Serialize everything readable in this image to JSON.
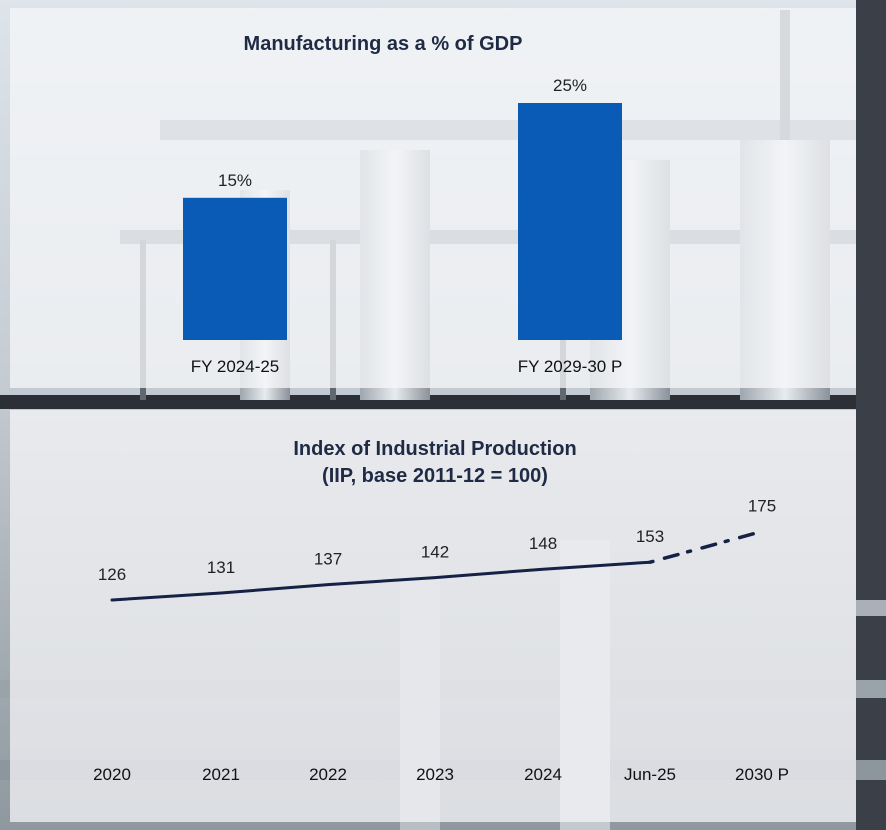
{
  "chart_data": [
    {
      "type": "bar",
      "title": "Manufacturing as a % of GDP",
      "categories": [
        "FY 2024-25",
        "FY 2029-30 P"
      ],
      "values": [
        15,
        25
      ],
      "value_labels": [
        "15%",
        "25%"
      ],
      "ylim": [
        0,
        25
      ],
      "bar_color": "#0a5bb5",
      "grid": false,
      "legend": "none"
    },
    {
      "type": "line",
      "title": [
        "Index of Industrial Production",
        "(IIP, base 2011-12 = 100)"
      ],
      "categories": [
        "2020",
        "2021",
        "2022",
        "2023",
        "2024",
        "Jun-25",
        "2030 P"
      ],
      "values": [
        126,
        131,
        137,
        142,
        148,
        153,
        175
      ],
      "value_labels": [
        "126",
        "131",
        "137",
        "142",
        "148",
        "153",
        "175"
      ],
      "projected_from": "Jun-25",
      "line_color": "#152245",
      "grid": false,
      "legend": "none"
    }
  ]
}
